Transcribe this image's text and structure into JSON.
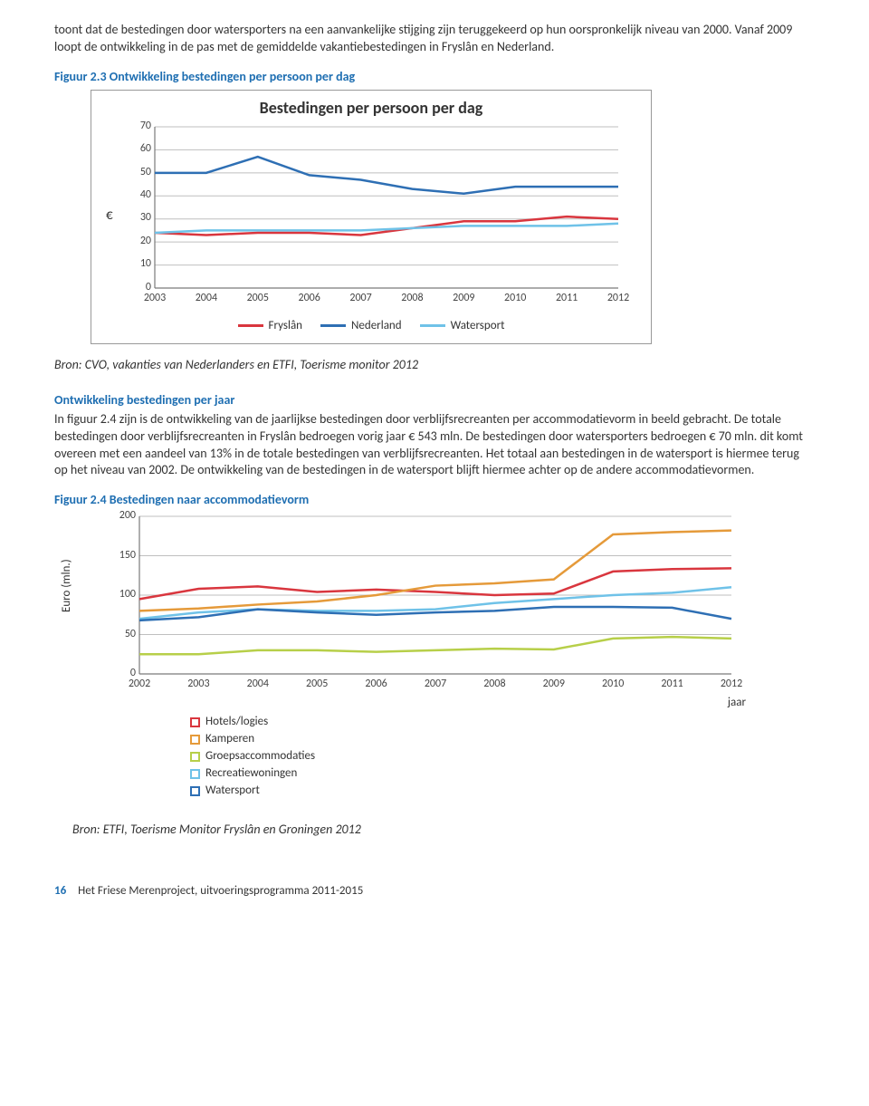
{
  "para1": "toont dat de bestedingen door watersporters na een aanvankelijke stijging zijn teruggekeerd op hun oorspronkelijk niveau van 2000. Vanaf 2009 loopt de ontwikkeling in de pas met de gemiddelde vakantiebestedingen in Fryslân en Nederland.",
  "fig23_caption": "Figuur 2.3 Ontwikkeling bestedingen per persoon per dag",
  "chart1": {
    "title": "Bestedingen per persoon per dag",
    "yaxis_label": "€",
    "ymin": 0,
    "ymax": 70,
    "ystep": 10,
    "years": [
      2003,
      2004,
      2005,
      2006,
      2007,
      2008,
      2009,
      2010,
      2011,
      2012
    ],
    "series": [
      {
        "name": "Fryslân",
        "color": "#d9363e",
        "values": [
          24,
          23,
          24,
          24,
          23,
          26,
          29,
          29,
          31,
          30
        ]
      },
      {
        "name": "Nederland",
        "color": "#2e6fb4",
        "values": [
          50,
          50,
          57,
          49,
          47,
          43,
          41,
          44,
          44,
          44
        ]
      },
      {
        "name": "Watersport",
        "color": "#6fc2e8",
        "values": [
          24,
          25,
          25,
          25,
          25,
          26,
          27,
          27,
          27,
          28
        ]
      }
    ],
    "grid_color": "#bfbfbf",
    "axis_color": "#7a7a7a",
    "font_size": 12
  },
  "source1": "Bron: CVO, vakanties van Nederlanders en ETFI, Toerisme monitor 2012",
  "heading2": "Ontwikkeling bestedingen per jaar",
  "para2": "In figuur 2.4 zijn is de ontwikkeling van de jaarlijkse bestedingen door verblijfsrecreanten per accommodatievorm in beeld gebracht. De totale bestedingen door verblijfsrecreanten in Fryslân bedroegen vorig jaar € 543 mln. De bestedingen door watersporters bedroegen € 70 mln. dit komt overeen met een aandeel van 13% in de totale bestedingen van verblijfsrecreanten. Het totaal aan bestedingen in de watersport is hiermee terug op het niveau van 2002. De ontwikkeling van de bestedingen in de watersport blijft hiermee achter op de andere accommodatievormen.",
  "fig24_caption": "Figuur 2.4 Bestedingen naar accommodatievorm",
  "chart2": {
    "yaxis_label": "Euro (mln.)",
    "ymin": 0,
    "ymax": 200,
    "ystep": 50,
    "years": [
      2002,
      2003,
      2004,
      2005,
      2006,
      2007,
      2008,
      2009,
      2010,
      2011,
      2012
    ],
    "jaar_label": "jaar",
    "series": [
      {
        "name": "Hotels/logies",
        "color": "#d9363e",
        "values": [
          95,
          108,
          111,
          104,
          107,
          104,
          100,
          102,
          130,
          133,
          134
        ]
      },
      {
        "name": "Kamperen",
        "color": "#e59a3a",
        "values": [
          80,
          83,
          88,
          92,
          100,
          112,
          115,
          120,
          177,
          180,
          182
        ]
      },
      {
        "name": "Groepsaccommodaties",
        "color": "#b7cf49",
        "values": [
          25,
          25,
          30,
          30,
          28,
          30,
          32,
          31,
          45,
          47,
          45
        ]
      },
      {
        "name": "Recreatiewoningen",
        "color": "#6fc2e8",
        "values": [
          70,
          78,
          82,
          80,
          80,
          82,
          90,
          95,
          100,
          103,
          110
        ]
      },
      {
        "name": "Watersport",
        "color": "#2e6fb4",
        "values": [
          68,
          72,
          82,
          78,
          75,
          78,
          80,
          85,
          85,
          84,
          70
        ]
      }
    ],
    "grid_color": "#bfbfbf",
    "axis_color": "#7a7a7a",
    "font_size": 12
  },
  "source2": "Bron: ETFI, Toerisme Monitor Fryslân en Groningen 2012",
  "footer_page": "16",
  "footer_text": "Het Friese Merenproject, uitvoeringsprogramma 2011-2015"
}
